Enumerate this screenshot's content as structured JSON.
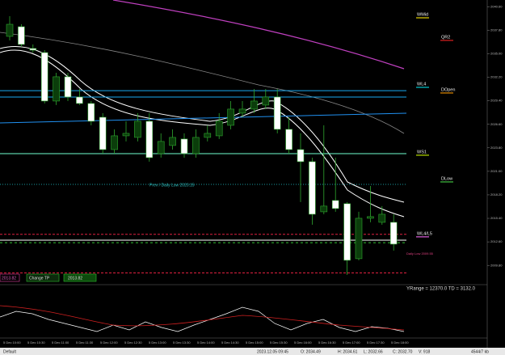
{
  "chart_data": {
    "type": "candlestick",
    "open": [
      2037.07,
      2038.22,
      2035.63,
      2035.14,
      2029.37,
      2032.26,
      2029.85,
      2029.08,
      2027.44,
      2023.59,
      2025.23,
      2025.04,
      2026.96,
      2023.11,
      2024.08,
      2024.85,
      2023.11,
      2025.04,
      2025.23,
      2026.48,
      2027.93,
      2028.41,
      2028.89,
      2029.85,
      2026.0,
      2023.59,
      2022.15,
      2016.18,
      2017.53,
      2017.15,
      2010.6,
      2015.41,
      2014.93,
      2014.93
    ],
    "high": [
      2039.48,
      2038.51,
      2036.11,
      2035.43,
      2032.74,
      2032.74,
      2030.81,
      2029.37,
      2027.93,
      2026.0,
      2026.96,
      2027.93,
      2027.93,
      2025.52,
      2026.0,
      2025.52,
      2026.0,
      2026.48,
      2027.93,
      2029.37,
      2029.37,
      2030.81,
      2030.81,
      2030.81,
      2027.44,
      2025.52,
      2022.63,
      2026.48,
      2022.63,
      2017.34,
      2016.18,
      2019.26,
      2016.86,
      2015.89
    ],
    "low": [
      2036.59,
      2035.82,
      2035.14,
      2029.08,
      2028.89,
      2029.37,
      2028.89,
      2026.48,
      2023.11,
      2023.11,
      2024.56,
      2024.56,
      2022.15,
      2022.63,
      2023.59,
      2022.63,
      2022.63,
      2024.56,
      2024.85,
      2026.0,
      2027.44,
      2027.93,
      2028.41,
      2025.52,
      2023.11,
      2017.34,
      2014.64,
      2015.89,
      2016.18,
      2008.68,
      2010.41,
      2014.93,
      2014.64,
      2011.56
    ],
    "close": [
      2038.51,
      2036.11,
      2035.43,
      2029.37,
      2032.26,
      2029.85,
      2029.08,
      2026.96,
      2023.59,
      2025.23,
      2025.52,
      2026.96,
      2022.63,
      2024.56,
      2025.04,
      2023.11,
      2025.04,
      2025.52,
      2026.96,
      2028.41,
      2028.41,
      2029.37,
      2029.85,
      2026.0,
      2023.59,
      2022.15,
      2015.89,
      2016.86,
      2016.57,
      2010.41,
      2015.41,
      2015.61,
      2015.89,
      2012.33
    ],
    "ylim": [
      2007.7,
      2041.4
    ],
    "yticks": [
      {
        "value": 2040.6,
        "label": "2040.60"
      },
      {
        "value": 2037.8,
        "label": "2037.80"
      },
      {
        "value": 2035,
        "label": "2035.00"
      },
      {
        "value": 2032.2,
        "label": "2032.20"
      },
      {
        "value": 2029.4,
        "label": "2029.40"
      },
      {
        "value": 2026.6,
        "label": "2026.60"
      },
      {
        "value": 2023.8,
        "label": "2023.80"
      },
      {
        "value": 2021,
        "label": "2021.00"
      },
      {
        "value": 2018.2,
        "label": "2018.20"
      },
      {
        "value": 2015.4,
        "label": "2015.40"
      },
      {
        "value": 2012.6,
        "label": "2012.60"
      },
      {
        "value": 2009.8,
        "label": "2009.80"
      }
    ],
    "time_labels": [
      "5 Dec 10:00",
      "5 Dec 10:30",
      "5 Dec 11:00",
      "5 Dec 11:30",
      "5 Dec 12:00",
      "5 Dec 12:30",
      "5 Dec 13:00",
      "5 Dec 13:30",
      "5 Dec 14:00",
      "5 Dec 14:30",
      "5 Dec 15:00",
      "5 Dec 15:30",
      "5 Dec 16:00",
      "5 Dec 16:30",
      "5 Dec 17:00",
      "5 Dec 17:30",
      "5 Dec 18:00"
    ],
    "levels": [
      {
        "name": "WMid",
        "value": 2039.28,
        "color": "#e6d200"
      },
      {
        "name": "QR2",
        "value": 2036.59,
        "color": "#e02020"
      },
      {
        "name": "WL4",
        "value": 2031.0,
        "color": "#00c8d0"
      },
      {
        "name": "DOpen",
        "value": 2030.33,
        "color": "#e08a00"
      },
      {
        "name": "WS1",
        "value": 2022.92,
        "color": "#b8e000"
      },
      {
        "name": "DLow",
        "value": 2019.74,
        "color": "#40c040"
      },
      {
        "name": "WL4/L5",
        "value": 2013.2,
        "color": "#e060e0"
      }
    ],
    "level_lines": [
      {
        "value": 2030.6,
        "color": "#18a8f0",
        "dash": "none"
      },
      {
        "value": 2029.85,
        "color": "#18a8f0",
        "dash": "none"
      },
      {
        "value": 2023.11,
        "color": "#70ffd0",
        "dash": "none"
      },
      {
        "value": 2019.45,
        "color": "#1a9aa0",
        "dash": "1,2"
      },
      {
        "value": 2013.5,
        "color": "#e02040",
        "dash": "3,2"
      },
      {
        "value": 2012.8,
        "color": "#ffffff",
        "dash": "none"
      },
      {
        "value": 2012.5,
        "color": "#30c030",
        "dash": "3,3"
      },
      {
        "value": 2008.9,
        "color": "#e02040",
        "dash": "3,2"
      }
    ],
    "annotations": [
      "Prev / Daily Low 2020.15",
      "Daily Low 2009.55"
    ],
    "price_boxes": [
      "2013.82",
      "Change TP",
      "2013.82"
    ],
    "range_info": "YRange = 12370.0    TD = 3132.0"
  },
  "status_bar": [
    "Default",
    "2023.12.05 09:45",
    "O: 2034.49",
    "H: 2034.61",
    "L: 2032.66",
    "C: 2032.70",
    "V: 918",
    "4544/7 kb"
  ]
}
